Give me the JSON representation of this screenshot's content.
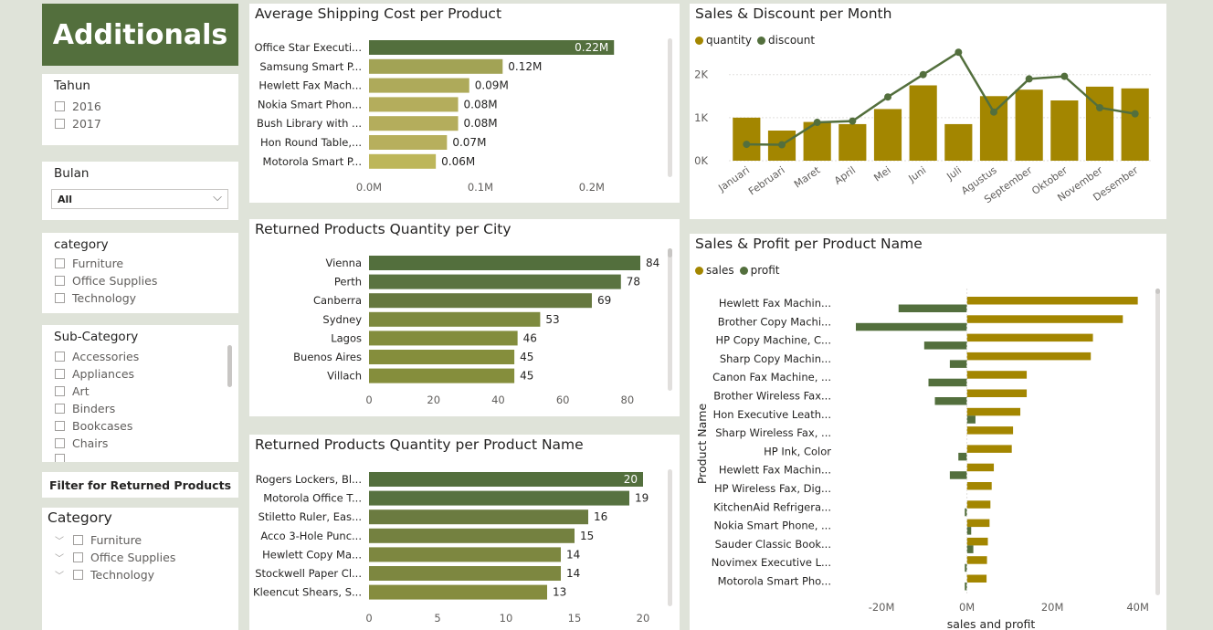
{
  "brand": {
    "title": "Additionals"
  },
  "slicers": {
    "tahun": {
      "title": "Tahun",
      "options": [
        "2016",
        "2017"
      ]
    },
    "bulan": {
      "title": "Bulan",
      "value": "All"
    },
    "category": {
      "title": "category",
      "options": [
        "Furniture",
        "Office Supplies",
        "Technology"
      ]
    },
    "subcategory": {
      "title": "Sub-Category",
      "options": [
        "Accessories",
        "Appliances",
        "Art",
        "Binders",
        "Bookcases",
        "Chairs"
      ]
    },
    "filter_button": "Filter for Returned Products",
    "category2": {
      "title": "Category",
      "options": [
        "Furniture",
        "Office Supplies",
        "Technology"
      ]
    }
  },
  "colors": {
    "dark_green": "#536f3d",
    "olive": "#a38600",
    "bar_light": "#bdb65a",
    "bar_mid": "#8b8f3c"
  },
  "chart_data": [
    {
      "id": "shipping",
      "type": "bar",
      "orientation": "horizontal",
      "title": "Average Shipping Cost per Product",
      "categories": [
        "Office Star Executi...",
        "Samsung Smart P...",
        "Hewlett Fax Mach...",
        "Nokia Smart Phon...",
        "Bush Library with ...",
        "Hon Round Table,...",
        "Motorola Smart P..."
      ],
      "values": [
        0.22,
        0.12,
        0.09,
        0.08,
        0.08,
        0.07,
        0.06
      ],
      "labels": [
        "0.22M",
        "0.12M",
        "0.09M",
        "0.08M",
        "0.08M",
        "0.07M",
        "0.06M"
      ],
      "xlim": [
        0,
        0.26
      ],
      "ticks": [
        0,
        0.1,
        0.2
      ],
      "tick_labels": [
        "0.0M",
        "0.1M",
        "0.2M"
      ]
    },
    {
      "id": "city",
      "type": "bar",
      "orientation": "horizontal",
      "title": "Returned Products Quantity per City",
      "categories": [
        "Vienna",
        "Perth",
        "Canberra",
        "Sydney",
        "Lagos",
        "Buenos Aires",
        "Villach"
      ],
      "values": [
        84,
        78,
        69,
        53,
        46,
        45,
        45
      ],
      "labels": [
        "84",
        "78",
        "69",
        "53",
        "46",
        "45",
        "45"
      ],
      "xlim": [
        0,
        84
      ],
      "ticks": [
        0,
        20,
        40,
        60,
        80
      ],
      "tick_labels": [
        "0",
        "20",
        "40",
        "60",
        "80"
      ]
    },
    {
      "id": "product",
      "type": "bar",
      "orientation": "horizontal",
      "title": "Returned Products Quantity per Product Name",
      "categories": [
        "Rogers Lockers, Bl...",
        "Motorola Office T...",
        "Stiletto Ruler, Eas...",
        "Acco 3-Hole Punc...",
        "Hewlett Copy Ma...",
        "Stockwell Paper Cl...",
        "Kleencut Shears, S..."
      ],
      "values": [
        20,
        19,
        16,
        15,
        14,
        14,
        13
      ],
      "labels": [
        "20",
        "19",
        "16",
        "15",
        "14",
        "14",
        "13"
      ],
      "xlim": [
        0,
        20
      ],
      "ticks": [
        0,
        5,
        10,
        15,
        20
      ],
      "tick_labels": [
        "0",
        "5",
        "10",
        "15",
        "20"
      ]
    },
    {
      "id": "month",
      "type": "bar",
      "title": "Sales & Discount per Month",
      "categories": [
        "Januari",
        "Februari",
        "Maret",
        "April",
        "Mei",
        "Juni",
        "Juli",
        "Agustus",
        "September",
        "Oktober",
        "November",
        "Desember"
      ],
      "series": [
        {
          "name": "quantity",
          "type": "bar",
          "values": [
            1000,
            700,
            900,
            850,
            1200,
            1750,
            850,
            1500,
            1650,
            1400,
            1720,
            1680
          ]
        },
        {
          "name": "discount",
          "type": "line",
          "values": [
            380,
            370,
            890,
            920,
            1480,
            2000,
            2520,
            1130,
            1900,
            1960,
            1230,
            1090
          ]
        }
      ],
      "ylim": [
        0,
        2800
      ],
      "ticks": [
        0,
        1000,
        2000
      ],
      "tick_labels": [
        "0K",
        "1K",
        "2K"
      ],
      "legend": "top-left"
    },
    {
      "id": "profit",
      "type": "bar",
      "orientation": "horizontal",
      "title": "Sales & Profit per Product Name",
      "categories": [
        "Hewlett Fax Machin...",
        "Brother Copy Machi...",
        "HP Copy Machine, C...",
        "Sharp Copy Machin...",
        "Canon Fax Machine, ...",
        "Brother Wireless Fax...",
        "Hon Executive Leath...",
        "Sharp Wireless Fax, ...",
        "HP Ink, Color",
        "Hewlett Fax Machin...",
        "HP Wireless Fax, Dig...",
        "KitchenAid Refrigera...",
        "Nokia Smart Phone, ...",
        "Sauder Classic Book...",
        "Novimex Executive L...",
        "Motorola Smart Pho..."
      ],
      "series": [
        {
          "name": "sales",
          "values": [
            40,
            36.5,
            29.5,
            29,
            14,
            14,
            12.5,
            10.8,
            10.5,
            6.3,
            5.8,
            5.5,
            5.3,
            4.9,
            4.7,
            4.6
          ]
        },
        {
          "name": "profit",
          "values": [
            -16,
            -26,
            -10,
            -4,
            -9,
            -7.5,
            2,
            0,
            -2,
            -4,
            0,
            -0.5,
            1,
            1.5,
            -0.5,
            -0.5
          ]
        }
      ],
      "xlim": [
        -26,
        42
      ],
      "ticks": [
        -20,
        0,
        20,
        40
      ],
      "tick_labels": [
        "-20M",
        "0M",
        "20M",
        "40M"
      ],
      "xlabel": "sales and profit",
      "ylabel": "Product Name",
      "legend": "top-left"
    }
  ]
}
